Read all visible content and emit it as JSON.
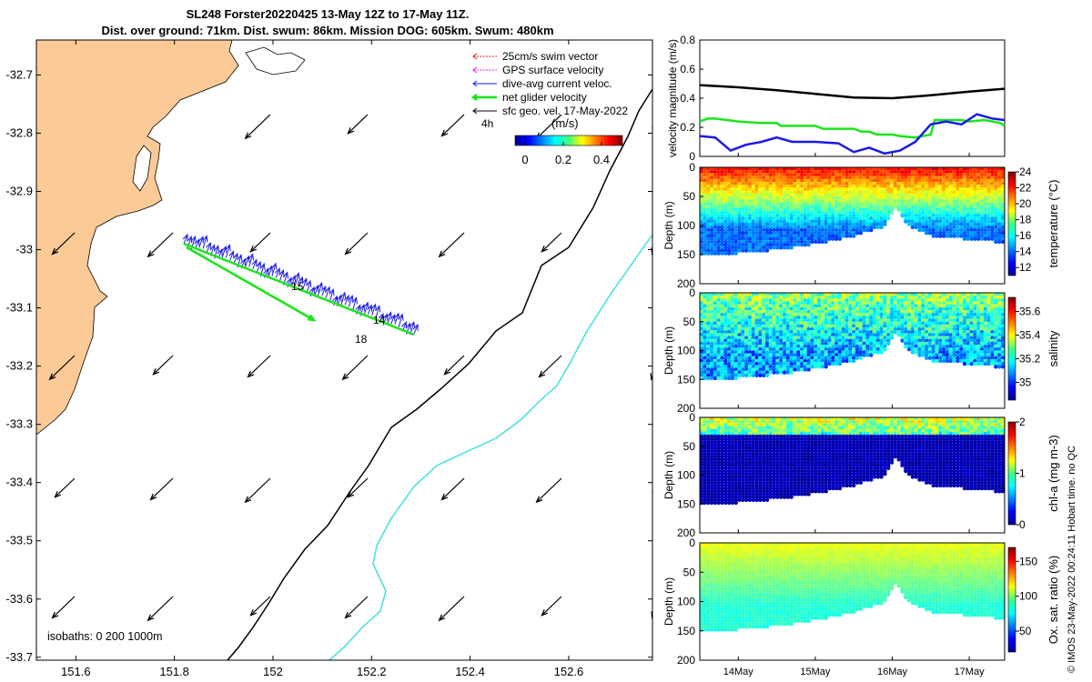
{
  "header": {
    "title_line1": "SL248 Forster20220425 13-May 12Z to 17-May 11Z.",
    "title_line2": "Dist. over ground: 71km. Dist. swum: 86km. Mission DOG: 605km. Swum: 480km"
  },
  "credit": "© IMOS 23-May-2022 00:24:11 Hobart time. no QC",
  "colors": {
    "land": "#fbca96",
    "isobath_200": "#000000",
    "isobath_1000": "#40e0e0",
    "net_velocity": "#19e619",
    "dive_avg": "#1a1ae6",
    "swim": "#e61a1a",
    "gps": "#e61ae6"
  },
  "map": {
    "legend": [
      {
        "label": "25cm/s swim vector",
        "color": "#e61a1a"
      },
      {
        "label": "GPS surface velocity",
        "color": "#e61ae6"
      },
      {
        "label": "dive-avg current veloc.",
        "color": "#1a1ae6"
      },
      {
        "label": "net glider velocity",
        "color": "#19e619"
      },
      {
        "label": "sfc geo. vel. 17-May-2022",
        "color": "#000000"
      }
    ],
    "legend_extra_label": "4h",
    "colorbar_title": "(m/s)",
    "colorbar_ticks": [
      "0",
      "0.2",
      "0.4"
    ],
    "isobath_label": "isobaths: 0   200  1000m",
    "track_labels": [
      "15",
      "14",
      "18"
    ],
    "lon_ticks": [
      "151.6",
      "151.8",
      "152",
      "152.2",
      "152.4",
      "152.6"
    ],
    "lat_ticks": [
      "-32.7",
      "-32.8",
      "-32.9",
      "-33",
      "-33.1",
      "-33.2",
      "-33.3",
      "-33.4",
      "-33.5",
      "-33.6",
      "-33.7"
    ],
    "lon_range": [
      151.52,
      152.77
    ],
    "lat_range": [
      -33.705,
      -32.64
    ]
  },
  "chart_data": [
    {
      "type": "line",
      "title": "",
      "ylabel": "velocity magnitude (m/s)",
      "ylim": [
        0,
        0.8
      ],
      "yticks": [
        "0",
        "0.2",
        "0.4",
        "0.6",
        "0.8"
      ],
      "x_unit": "day index (13-May 12Z = 0)",
      "series": [
        {
          "name": "sfc geo. vel.",
          "color": "#000000",
          "x": [
            0,
            0.5,
            1,
            1.5,
            2,
            2.5,
            3,
            3.5,
            3.96
          ],
          "values": [
            0.49,
            0.475,
            0.455,
            0.43,
            0.405,
            0.4,
            0.42,
            0.445,
            0.465
          ]
        },
        {
          "name": "net glider velocity",
          "color": "#19e619",
          "x": [
            0,
            0.1,
            0.2,
            0.5,
            0.8,
            1.0,
            1.05,
            1.5,
            1.6,
            2.0,
            2.1,
            2.2,
            2.3,
            2.5,
            2.6,
            2.8,
            3.0,
            3.05,
            3.2,
            3.4,
            3.5,
            3.7,
            3.9,
            3.96
          ],
          "values": [
            0.24,
            0.26,
            0.26,
            0.24,
            0.23,
            0.23,
            0.21,
            0.21,
            0.19,
            0.19,
            0.17,
            0.17,
            0.15,
            0.15,
            0.14,
            0.13,
            0.15,
            0.25,
            0.25,
            0.25,
            0.24,
            0.25,
            0.23,
            0.21
          ]
        },
        {
          "name": "dive-avg current veloc.",
          "color": "#1a1ae6",
          "x": [
            0,
            0.2,
            0.4,
            0.6,
            0.8,
            1.0,
            1.2,
            1.5,
            1.8,
            2.0,
            2.2,
            2.4,
            2.6,
            2.8,
            3.0,
            3.2,
            3.4,
            3.6,
            3.8,
            3.96
          ],
          "values": [
            0.14,
            0.13,
            0.04,
            0.08,
            0.1,
            0.13,
            0.1,
            0.1,
            0.09,
            0.03,
            0.06,
            0.02,
            0.04,
            0.1,
            0.22,
            0.24,
            0.22,
            0.29,
            0.26,
            0.25
          ]
        }
      ]
    },
    {
      "type": "heatmap",
      "quantity": "temperature",
      "colorbar_label": "temperature (°C)",
      "ylabel": "Depth (m)",
      "ylim": [
        200,
        0
      ],
      "yticks": [
        "0",
        "50",
        "100",
        "150",
        "200"
      ],
      "clim": [
        11,
        24
      ],
      "colorbar_ticks": [
        "12",
        "14",
        "16",
        "18",
        "20",
        "22",
        "24"
      ],
      "surface_value": 22.5,
      "deep_value": 14,
      "variability": 1.5
    },
    {
      "type": "heatmap",
      "quantity": "salinity",
      "colorbar_label": "salinity",
      "ylabel": "Depth (m)",
      "ylim": [
        200,
        0
      ],
      "yticks": [
        "0",
        "50",
        "100",
        "150",
        "200"
      ],
      "clim": [
        34.85,
        35.72
      ],
      "colorbar_ticks": [
        "35",
        "35.2",
        "35.4",
        "35.6"
      ],
      "surface_value": 35.3,
      "deep_value": 35.1,
      "variability": 0.25
    },
    {
      "type": "heatmap",
      "quantity": "chlorophyll",
      "colorbar_label": "chl-a (mg m-3)",
      "ylabel": "Depth (m)",
      "ylim": [
        200,
        0
      ],
      "yticks": [
        "0",
        "50",
        "100",
        "150",
        "200"
      ],
      "clim": [
        0,
        2
      ],
      "colorbar_ticks": [
        "0",
        "1",
        "2"
      ],
      "surface_value": 1.2,
      "deep_value": 0.05,
      "variability": 0.5
    },
    {
      "type": "heatmap",
      "quantity": "oxygen",
      "colorbar_label": "Ox. sat. ratio (%)",
      "ylabel": "Depth (m)",
      "ylim": [
        200,
        0
      ],
      "yticks": [
        "0",
        "50",
        "100",
        "150",
        "200"
      ],
      "clim": [
        20,
        170
      ],
      "colorbar_ticks": [
        "50",
        "100",
        "150"
      ],
      "surface_value": 112,
      "deep_value": 82,
      "variability": 6
    }
  ],
  "time_axis": {
    "ticks": [
      "14May",
      "15May",
      "16May",
      "17May"
    ],
    "tick_days": [
      0.5,
      1.5,
      2.5,
      3.5
    ],
    "range_days": [
      0,
      3.96
    ]
  }
}
